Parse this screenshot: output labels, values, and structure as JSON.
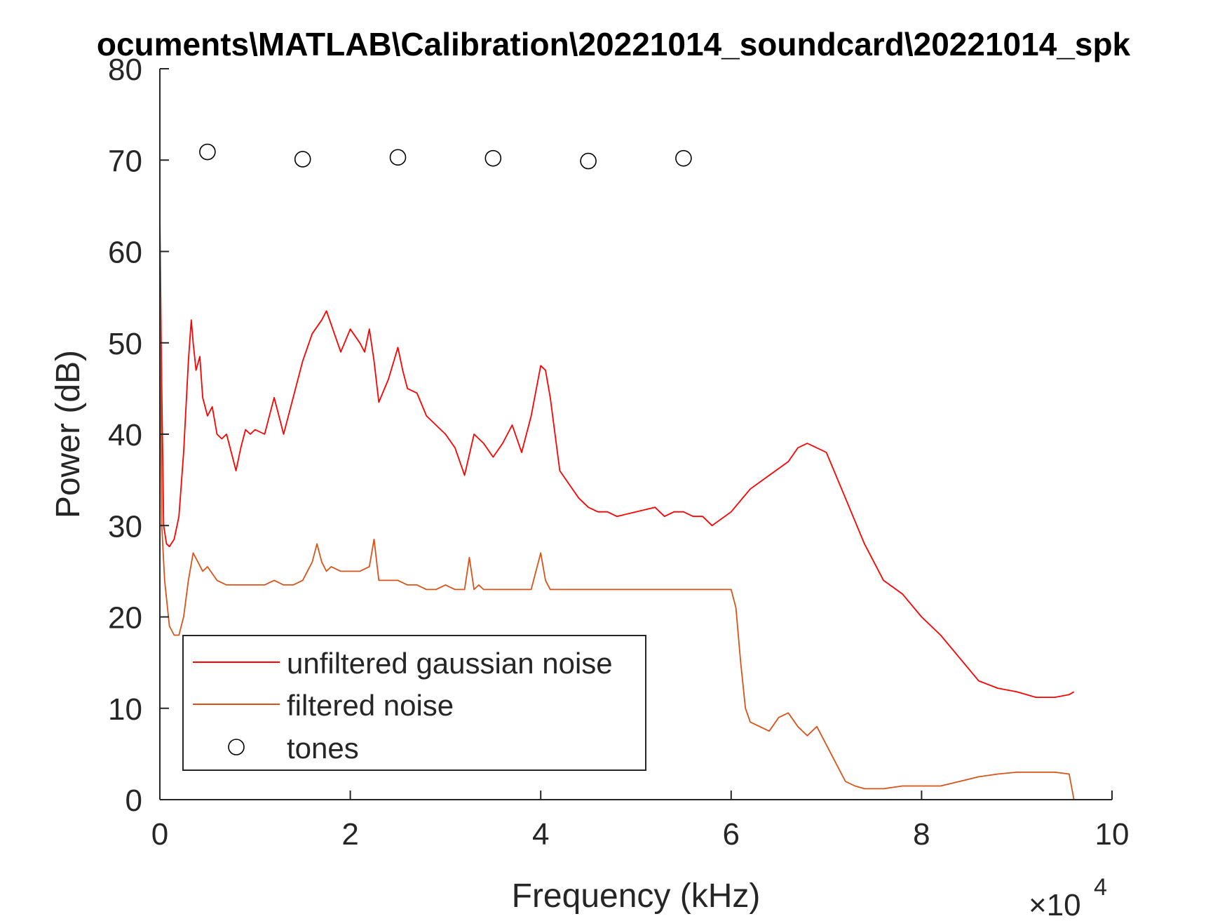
{
  "chart_data": {
    "type": "line",
    "title": "ocuments\\MATLAB\\Calibration\\20221014_soundcard\\20221014_spk",
    "xlabel": "Frequency (kHz)",
    "ylabel": "Power (dB)",
    "x_exponent_label": "×10",
    "x_exponent_power": "4",
    "xlim": [
      0,
      100000
    ],
    "ylim": [
      0,
      80
    ],
    "x_ticks": [
      0,
      20000,
      40000,
      60000,
      80000,
      100000
    ],
    "x_tick_labels": [
      "0",
      "2",
      "4",
      "6",
      "8",
      "10"
    ],
    "y_ticks": [
      0,
      10,
      20,
      30,
      40,
      50,
      60,
      70,
      80
    ],
    "y_tick_labels": [
      "0",
      "10",
      "20",
      "30",
      "40",
      "50",
      "60",
      "70",
      "80"
    ],
    "grid": false,
    "legend_position": "bottom-left",
    "series": [
      {
        "name": "unfiltered gaussian noise",
        "color": "#ff0000",
        "style": "line",
        "x": [
          0,
          200,
          400,
          700,
          1000,
          1500,
          2000,
          2500,
          3000,
          3300,
          3500,
          3800,
          4200,
          4500,
          5000,
          5500,
          6000,
          6500,
          7000,
          7500,
          8000,
          8500,
          9000,
          9500,
          10000,
          11000,
          12000,
          12500,
          13000,
          13500,
          14000,
          15000,
          16000,
          17000,
          17500,
          18000,
          19000,
          20000,
          21000,
          21500,
          22000,
          22500,
          23000,
          24000,
          25000,
          25500,
          26000,
          27000,
          28000,
          29000,
          30000,
          31000,
          31500,
          32000,
          33000,
          34000,
          35000,
          36000,
          37000,
          38000,
          39000,
          40000,
          40500,
          41000,
          42000,
          43000,
          44000,
          45000,
          46000,
          47000,
          48000,
          50000,
          52000,
          53000,
          54000,
          55000,
          56000,
          57000,
          58000,
          60000,
          62000,
          64000,
          66000,
          67000,
          68000,
          70000,
          72000,
          74000,
          76000,
          78000,
          80000,
          82000,
          84000,
          86000,
          88000,
          90000,
          92000,
          94000,
          95500,
          96000
        ],
        "y": [
          64,
          45,
          30,
          28,
          27.7,
          28.5,
          31,
          38,
          48,
          52.5,
          50,
          47,
          48.5,
          44,
          42,
          43,
          40,
          39.5,
          40,
          38,
          36,
          38.5,
          40.5,
          40,
          40.5,
          40,
          44,
          42,
          40,
          42,
          44,
          48,
          51,
          52.5,
          53.5,
          52,
          49,
          51.5,
          50,
          49,
          51.5,
          48,
          43.5,
          46,
          49.5,
          47,
          45,
          44.5,
          42,
          41,
          40,
          38.5,
          37,
          35.5,
          40,
          39,
          37.5,
          39,
          41,
          38,
          42,
          47.5,
          47,
          44,
          36,
          34.5,
          33,
          32,
          31.5,
          31.5,
          31,
          31.5,
          32,
          31,
          31.5,
          31.5,
          31,
          31,
          30,
          31.5,
          34,
          35.5,
          37,
          38.5,
          39,
          38,
          33,
          28,
          24,
          22.5,
          20,
          18,
          15.5,
          13,
          12.2,
          11.8,
          11.2,
          11.2,
          11.5,
          11.8
        ]
      },
      {
        "name": "filtered noise",
        "color": "#d95319",
        "style": "line",
        "x": [
          0,
          200,
          500,
          1000,
          1500,
          2000,
          2500,
          3000,
          3500,
          4000,
          4500,
          5000,
          6000,
          7000,
          8000,
          9000,
          10000,
          11000,
          12000,
          13000,
          14000,
          15000,
          16000,
          16500,
          17000,
          17500,
          18000,
          19000,
          20000,
          21000,
          22000,
          22500,
          23000,
          24000,
          25000,
          26000,
          27000,
          28000,
          29000,
          30000,
          31000,
          32000,
          32500,
          33000,
          33500,
          34000,
          35000,
          36000,
          37000,
          38000,
          39000,
          40000,
          40500,
          41000,
          42000,
          44000,
          46000,
          48000,
          50000,
          52000,
          54000,
          56000,
          58000,
          59000,
          60000,
          60500,
          61000,
          61500,
          62000,
          63000,
          64000,
          65000,
          66000,
          67000,
          68000,
          69000,
          70000,
          71000,
          72000,
          73000,
          74000,
          75000,
          76000,
          78000,
          80000,
          82000,
          84000,
          86000,
          88000,
          90000,
          92000,
          94000,
          95500,
          96000
        ],
        "y": [
          62,
          30,
          24,
          19,
          18,
          18,
          20,
          24,
          27,
          26,
          25,
          25.5,
          24,
          23.5,
          23.5,
          23.5,
          23.5,
          23.5,
          24,
          23.5,
          23.5,
          24,
          26,
          28,
          26,
          25,
          25.5,
          25,
          25,
          25,
          25.5,
          28.5,
          24,
          24,
          24,
          23.5,
          23.5,
          23,
          23,
          23.5,
          23,
          23,
          26.5,
          23,
          23.5,
          23,
          23,
          23,
          23,
          23,
          23,
          27,
          24,
          23,
          23,
          23,
          23,
          23,
          23,
          23,
          23,
          23,
          23,
          23,
          23,
          21,
          15,
          10,
          8.5,
          8,
          7.5,
          9,
          9.5,
          8,
          7,
          8,
          6,
          4,
          2,
          1.5,
          1.2,
          1.2,
          1.2,
          1.5,
          1.5,
          1.5,
          2,
          2.5,
          2.8,
          3,
          3,
          3,
          2.8,
          0
        ]
      },
      {
        "name": "tones",
        "color": "#000000",
        "style": "marker",
        "x": [
          5000,
          15000,
          25000,
          35000,
          45000,
          55000
        ],
        "y": [
          70.9,
          70.1,
          70.3,
          70.2,
          69.9,
          70.2
        ]
      }
    ]
  }
}
